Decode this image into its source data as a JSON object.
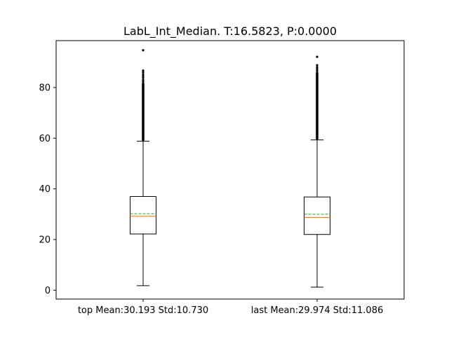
{
  "chart_data": {
    "type": "boxplot",
    "title": "LabL_Int_Median. T:16.5823, P:0.0000",
    "xlabel": "",
    "ylabel": "",
    "ylim": [
      -3.5,
      98.5
    ],
    "yticks": [
      0,
      20,
      40,
      60,
      80
    ],
    "categories": [
      "top Mean:30.193 Std:10.730",
      "last Mean:29.974 Std:11.086"
    ],
    "boxes": [
      {
        "label": "top Mean:30.193 Std:10.730",
        "whisker_low": 1.8,
        "q1": 22.2,
        "median": 29.2,
        "mean": 30.193,
        "q3": 37.0,
        "whisker_high": 58.8,
        "flier_low": 59.3,
        "flier_high": 81.5,
        "outliers": [
          82.3,
          83.0,
          83.8,
          84.5,
          85.2,
          86.0,
          86.7,
          94.7
        ]
      },
      {
        "label": "last Mean:29.974 Std:11.086",
        "whisker_low": 1.2,
        "q1": 22.0,
        "median": 28.7,
        "mean": 29.974,
        "q3": 36.8,
        "whisker_high": 59.3,
        "flier_low": 59.8,
        "flier_high": 85.8,
        "outliers": [
          86.6,
          87.3,
          88.0,
          88.8,
          92.1
        ]
      }
    ],
    "colors": {
      "box": "#000000",
      "median": "#ff7f0e",
      "mean": "#2ca02c"
    }
  }
}
